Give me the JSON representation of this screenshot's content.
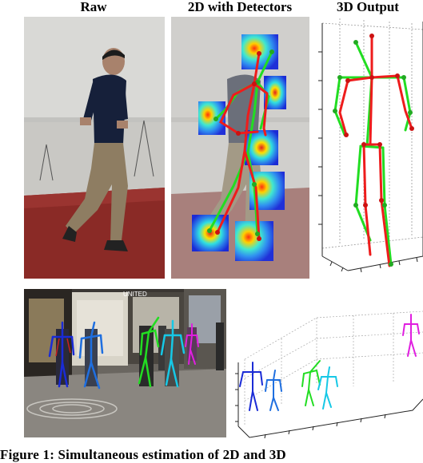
{
  "figure": {
    "columns": {
      "raw": "Raw",
      "detectors": "2D with Detectors",
      "output": "3D Output"
    },
    "caption": "Figure 1: Simultaneous estimation of 2D and 3D",
    "street_sign": "UNITED"
  },
  "colors": {
    "pose_red": "#ee1c1c",
    "pose_green": "#22dd22",
    "blue_dark": "#1a2bd6",
    "blue_mid": "#1f6fe0",
    "green_person": "#22dd22",
    "cyan_person": "#16c8e6",
    "magenta_person": "#e01ee0",
    "carpet": "#8a2a26"
  }
}
